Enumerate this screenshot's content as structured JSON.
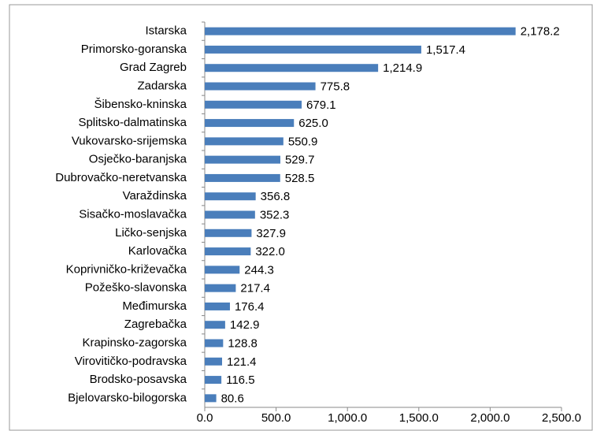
{
  "chart_data": {
    "type": "bar",
    "orientation": "horizontal",
    "categories": [
      "Istarska",
      "Primorsko-goranska",
      "Grad Zagreb",
      "Zadarska",
      "Šibensko-kninska",
      "Splitsko-dalmatinska",
      "Vukovarsko-srijemska",
      "Osječko-baranjska",
      "Dubrovačko-neretvanska",
      "Varaždinska",
      "Sisačko-moslavačka",
      "Ličko-senjska",
      "Karlovačka",
      "Koprivničko-križevačka",
      "Požeško-slavonska",
      "Međimurska",
      "Zagrebačka",
      "Krapinsko-zagorska",
      "Virovitičko-podravska",
      "Brodsko-posavska",
      "Bjelovarsko-bilogorska"
    ],
    "values": [
      2178.2,
      1517.4,
      1214.9,
      775.8,
      679.1,
      625.0,
      550.9,
      529.7,
      528.5,
      356.8,
      352.3,
      327.9,
      322.0,
      244.3,
      217.4,
      176.4,
      142.9,
      128.8,
      121.4,
      116.5,
      80.6
    ],
    "value_labels": [
      "2,178.2",
      "1,517.4",
      "1,214.9",
      "775.8",
      "679.1",
      "625.0",
      "550.9",
      "529.7",
      "528.5",
      "356.8",
      "352.3",
      "327.9",
      "322.0",
      "244.3",
      "217.4",
      "176.4",
      "142.9",
      "128.8",
      "121.4",
      "116.5",
      "80.6"
    ],
    "color": "#4a7ebb",
    "xlim": [
      0,
      2500
    ],
    "xticks": [
      {
        "value": 0,
        "label": "0.0"
      },
      {
        "value": 500,
        "label": "500.0"
      },
      {
        "value": 1000,
        "label": "1,000.0"
      },
      {
        "value": 1500,
        "label": "1,500.0"
      },
      {
        "value": 2000,
        "label": "2,000.0"
      },
      {
        "value": 2500,
        "label": "2,500.0"
      }
    ],
    "grid": false
  }
}
